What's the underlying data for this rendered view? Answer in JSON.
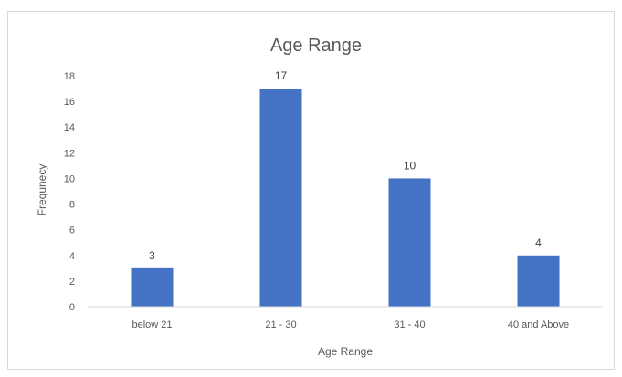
{
  "chart_data": {
    "type": "bar",
    "title": "Age Range",
    "xlabel": "Age Range",
    "ylabel": "Frequnecy",
    "categories": [
      "below 21",
      "21 - 30",
      "31 - 40",
      "40 and Above"
    ],
    "values": [
      3,
      17,
      10,
      4
    ],
    "ylim": [
      0,
      18
    ],
    "yticks": [
      0,
      2,
      4,
      6,
      8,
      10,
      12,
      14,
      16,
      18
    ],
    "data_labels": true,
    "grid": false,
    "legend": "none",
    "bar_color": "#4472c4",
    "axis_color": "#d9d9d9",
    "text_color": "#595959",
    "label_color": "#404040"
  }
}
